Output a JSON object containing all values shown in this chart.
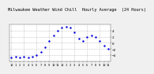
{
  "title": "Milwaukee Weather Wind Chill  Hourly Average  (24 Hours)",
  "title_fontsize": 3.8,
  "background_color": "#f0f0f0",
  "plot_bg_color": "#ffffff",
  "line_color": "#0000dd",
  "grid_color": "#aaaaaa",
  "hours": [
    0,
    1,
    2,
    3,
    4,
    5,
    6,
    7,
    8,
    9,
    10,
    11,
    12,
    13,
    14,
    15,
    16,
    17,
    18,
    19,
    20,
    21,
    22,
    23
  ],
  "values": [
    -4.8,
    -4.5,
    -4.8,
    -4.6,
    -4.7,
    -4.5,
    -4.0,
    -3.0,
    -1.5,
    0.5,
    2.5,
    4.0,
    5.0,
    5.2,
    4.9,
    3.5,
    1.5,
    0.5,
    2.0,
    2.5,
    2.0,
    0.5,
    -1.0,
    -2.0
  ],
  "ylim": [
    -6,
    6
  ],
  "xlim": [
    -0.5,
    23.5
  ],
  "tick_fontsize": 3.2,
  "marker_size": 1.5,
  "grid_xticks": [
    0,
    3,
    6,
    9,
    12,
    15,
    18,
    21
  ],
  "yticks": [
    -4,
    -2,
    0,
    2,
    4
  ],
  "xtick_positions": [
    0,
    1,
    2,
    3,
    4,
    5,
    6,
    7,
    8,
    9,
    10,
    11,
    12,
    13,
    14,
    15,
    16,
    17,
    18,
    19,
    20,
    21,
    22,
    23
  ],
  "xtick_labels": [
    "12",
    "1",
    "2",
    "3",
    "4",
    "5",
    "6",
    "7",
    "8",
    "9",
    "10",
    "11",
    "12",
    "1",
    "2",
    "3",
    "4",
    "5",
    "6",
    "7",
    "8",
    "9",
    "10",
    "11"
  ],
  "xtick_show_positions": [
    0,
    1,
    2,
    3,
    4,
    5,
    6,
    7,
    8,
    9,
    10,
    11,
    12,
    13,
    14,
    15,
    16,
    17,
    18,
    19,
    20,
    21,
    22,
    23
  ]
}
